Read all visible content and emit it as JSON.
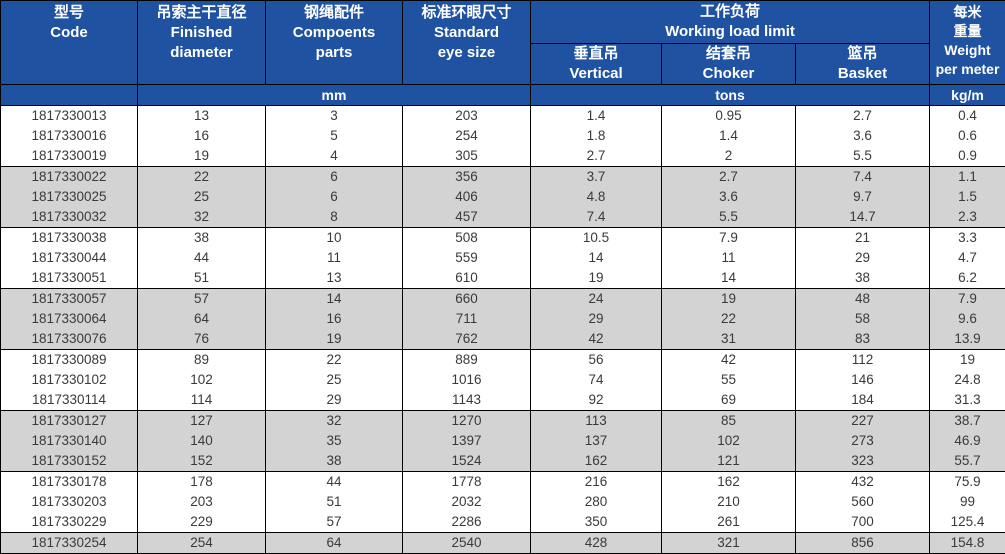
{
  "colors": {
    "header_bg": "#2052A2",
    "header_text": "#FFFFFF",
    "row_white": "#FFFFFF",
    "row_gray": "#D3D3D3",
    "data_text": "#3A3A3A",
    "border": "#000000"
  },
  "table": {
    "header": {
      "code": {
        "zh": "型号",
        "en": "Code"
      },
      "finished_diameter": {
        "zh": "吊索主干直径",
        "en1": "Finished",
        "en2": "diameter"
      },
      "components_parts": {
        "zh": "钢绳配件",
        "en1": "Compoents",
        "en2": "parts"
      },
      "standard_eye_size": {
        "zh": "标准环眼尺寸",
        "en1": "Standard",
        "en2": "eye size"
      },
      "working_load_limit": {
        "zh": "工作负荷",
        "en": "Working load limit"
      },
      "vertical": {
        "zh": "垂直吊",
        "en": "Vertical"
      },
      "choker": {
        "zh": "结套吊",
        "en": "Choker"
      },
      "basket": {
        "zh": "篮吊",
        "en": "Basket"
      },
      "weight_per_meter": {
        "zh1": "每米",
        "zh2": "重量",
        "en1": "Weight",
        "en2": "per meter"
      }
    },
    "units": {
      "mm": "mm",
      "tons": "tons",
      "kg_per_m": "kg/m"
    },
    "rows": [
      [
        "1817330013",
        "13",
        "3",
        "203",
        "1.4",
        "0.95",
        "2.7",
        "0.4"
      ],
      [
        "1817330016",
        "16",
        "5",
        "254",
        "1.8",
        "1.4",
        "3.6",
        "0.6"
      ],
      [
        "1817330019",
        "19",
        "4",
        "305",
        "2.7",
        "2",
        "5.5",
        "0.9"
      ],
      [
        "1817330022",
        "22",
        "6",
        "356",
        "3.7",
        "2.7",
        "7.4",
        "1.1"
      ],
      [
        "1817330025",
        "25",
        "6",
        "406",
        "4.8",
        "3.6",
        "9.7",
        "1.5"
      ],
      [
        "1817330032",
        "32",
        "8",
        "457",
        "7.4",
        "5.5",
        "14.7",
        "2.3"
      ],
      [
        "1817330038",
        "38",
        "10",
        "508",
        "10.5",
        "7.9",
        "21",
        "3.3"
      ],
      [
        "1817330044",
        "44",
        "11",
        "559",
        "14",
        "11",
        "29",
        "4.7"
      ],
      [
        "1817330051",
        "51",
        "13",
        "610",
        "19",
        "14",
        "38",
        "6.2"
      ],
      [
        "1817330057",
        "57",
        "14",
        "660",
        "24",
        "19",
        "48",
        "7.9"
      ],
      [
        "1817330064",
        "64",
        "16",
        "711",
        "29",
        "22",
        "58",
        "9.6"
      ],
      [
        "1817330076",
        "76",
        "19",
        "762",
        "42",
        "31",
        "83",
        "13.9"
      ],
      [
        "1817330089",
        "89",
        "22",
        "889",
        "56",
        "42",
        "112",
        "19"
      ],
      [
        "1817330102",
        "102",
        "25",
        "1016",
        "74",
        "55",
        "146",
        "24.8"
      ],
      [
        "1817330114",
        "114",
        "29",
        "1143",
        "92",
        "69",
        "184",
        "31.3"
      ],
      [
        "1817330127",
        "127",
        "32",
        "1270",
        "113",
        "85",
        "227",
        "38.7"
      ],
      [
        "1817330140",
        "140",
        "35",
        "1397",
        "137",
        "102",
        "273",
        "46.9"
      ],
      [
        "1817330152",
        "152",
        "38",
        "1524",
        "162",
        "121",
        "323",
        "55.7"
      ],
      [
        "1817330178",
        "178",
        "44",
        "1778",
        "216",
        "162",
        "432",
        "75.9"
      ],
      [
        "1817330203",
        "203",
        "51",
        "2032",
        "280",
        "210",
        "560",
        "99"
      ],
      [
        "1817330229",
        "229",
        "57",
        "2286",
        "350",
        "261",
        "700",
        "125.4"
      ],
      [
        "1817330254",
        "254",
        "64",
        "2540",
        "428",
        "321",
        "856",
        "154.8"
      ]
    ]
  }
}
